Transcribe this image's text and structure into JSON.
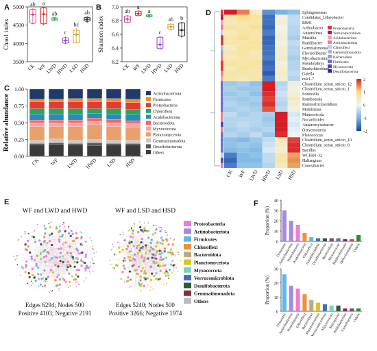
{
  "panel_labels": [
    "A",
    "B",
    "C",
    "D",
    "E",
    "F"
  ],
  "groups": [
    "CK",
    "WF",
    "LWD",
    "HWD",
    "LSD",
    "HSD"
  ],
  "colors": {
    "CK": "#d6408f",
    "WF": "#e02020",
    "LWD": "#3fae5a",
    "HWD": "#8a3fd0",
    "LSD": "#e39a2a",
    "HSD": "#222222"
  },
  "chart_data": [
    {
      "type": "box",
      "panel": "A",
      "ylabel": "Chao1 index",
      "ylim": [
        3500,
        5000
      ],
      "yticks": [
        3500,
        4000,
        4500,
        5000
      ],
      "categories": [
        "CK",
        "WF",
        "LWD",
        "HWD",
        "LSD",
        "HSD"
      ],
      "letters": [
        "ab",
        "a",
        "ab",
        "c",
        "bc",
        "ab"
      ],
      "boxes": [
        {
          "min": 4520,
          "q1": 4560,
          "median": 4790,
          "q3": 4920,
          "max": 4960
        },
        {
          "min": 4490,
          "q1": 4550,
          "median": 4800,
          "q3": 4960,
          "max": 4990
        },
        {
          "min": 4620,
          "q1": 4640,
          "median": 4665,
          "q3": 4690,
          "max": 4710
        },
        {
          "min": 3980,
          "q1": 4020,
          "median": 4080,
          "q3": 4140,
          "max": 4190
        },
        {
          "min": 4000,
          "q1": 4030,
          "median": 4240,
          "q3": 4350,
          "max": 4410
        },
        {
          "min": 4560,
          "q1": 4620,
          "median": 4660,
          "q3": 4700,
          "max": 4740
        }
      ]
    },
    {
      "type": "box",
      "panel": "B",
      "ylabel": "Shannon index",
      "ylim": [
        6.2,
        7.0
      ],
      "yticks": [
        6.2,
        6.4,
        6.6,
        6.8,
        7.0
      ],
      "categories": [
        "CK",
        "WF",
        "LWD",
        "HWD",
        "LSD",
        "HSD"
      ],
      "letters": [
        "ab",
        "a",
        "a",
        "c",
        "ab",
        "b"
      ],
      "boxes": [
        {
          "min": 6.76,
          "q1": 6.78,
          "median": 6.82,
          "q3": 6.86,
          "max": 6.88
        },
        {
          "min": 6.87,
          "q1": 6.88,
          "median": 6.9,
          "q3": 6.93,
          "max": 6.94
        },
        {
          "min": 6.85,
          "q1": 6.86,
          "median": 6.87,
          "q3": 6.88,
          "max": 6.88
        },
        {
          "min": 6.37,
          "q1": 6.4,
          "median": 6.45,
          "q3": 6.55,
          "max": 6.57
        },
        {
          "min": 6.65,
          "q1": 6.68,
          "median": 6.71,
          "q3": 6.74,
          "max": 6.76
        },
        {
          "min": 6.55,
          "q1": 6.58,
          "median": 6.66,
          "q3": 6.76,
          "max": 6.78
        }
      ]
    },
    {
      "type": "bar",
      "stacked": true,
      "panel": "C",
      "ylabel": "Relative abundance",
      "ylim": [
        0,
        1
      ],
      "yticks": [
        0.0,
        0.25,
        0.5,
        0.75,
        1.0
      ],
      "categories": [
        "CK",
        "WF",
        "LWD",
        "HWD",
        "LSD",
        "HSD"
      ],
      "legend": "right",
      "series": [
        {
          "name": "Others",
          "color": "#3a3a3a",
          "values": [
            0.17,
            0.18,
            0.17,
            0.16,
            0.17,
            0.17
          ]
        },
        {
          "name": "Desulfobacterota",
          "color": "#5a5a5a",
          "values": [
            0.02,
            0.02,
            0.02,
            0.04,
            0.02,
            0.02
          ]
        },
        {
          "name": "Gemmatimonadota",
          "color": "#c8c8c8",
          "values": [
            0.05,
            0.06,
            0.05,
            0.05,
            0.05,
            0.05
          ]
        },
        {
          "name": "Planctomycetota",
          "color": "#e9a06a",
          "values": [
            0.2,
            0.18,
            0.2,
            0.22,
            0.2,
            0.19
          ]
        },
        {
          "name": "Myxococcota",
          "color": "#f3a6a6",
          "values": [
            0.06,
            0.06,
            0.06,
            0.05,
            0.06,
            0.06
          ]
        },
        {
          "name": "Bacteroidota",
          "color": "#f06a6a",
          "values": [
            0.04,
            0.04,
            0.04,
            0.05,
            0.05,
            0.04
          ]
        },
        {
          "name": "Acidobacteriota",
          "color": "#2c8ab8",
          "values": [
            0.09,
            0.09,
            0.09,
            0.07,
            0.08,
            0.09
          ]
        },
        {
          "name": "Chloroflexi",
          "color": "#2ca55a",
          "values": [
            0.08,
            0.08,
            0.08,
            0.07,
            0.08,
            0.08
          ]
        },
        {
          "name": "Proteobacteria",
          "color": "#e53935",
          "values": [
            0.1,
            0.1,
            0.1,
            0.1,
            0.1,
            0.1
          ]
        },
        {
          "name": "Firmicutes",
          "color": "#f28c28",
          "values": [
            0.04,
            0.04,
            0.05,
            0.05,
            0.05,
            0.05
          ]
        },
        {
          "name": "Actinobacteriota",
          "color": "#1f3a6b",
          "values": [
            0.15,
            0.15,
            0.14,
            0.14,
            0.14,
            0.15
          ]
        }
      ],
      "legend_entries": [
        "Actinobacteriota",
        "Firmicutes",
        "Proteobacteria",
        "Chloroflexi",
        "Acidobacteriota",
        "Bacteroidota",
        "Myxococcota",
        "Planctomycetota",
        "Gemmatimonadota",
        "Desulfobacterota",
        "Others"
      ]
    },
    {
      "type": "heatmap",
      "panel": "D",
      "columns": [
        "CK",
        "WF",
        "LWD",
        "HWD",
        "LSD",
        "HSD"
      ],
      "rows": [
        "Sphingomonas",
        "Candidatus_Udaeobacter",
        "RB41",
        "Arthrobacter",
        "Anaerolinea",
        "Massilia",
        "Ramlibacter",
        "Gemmatimonas",
        "Flavisolibacter",
        "Mycobacterium",
        "Pseudolabrys",
        "Bradyrhizobium",
        "Gaiella",
        "mle1-7",
        "Clostridium_sensu_stricto_12",
        "Clostridium_sensu_stricto_1",
        "Fonticella",
        "Romboutsia",
        "Rummeliiclostridium",
        "Mobilitalea",
        "Marmoricola",
        "Nocardioides",
        "Anaeromyxobacter",
        "Ozryentotteria",
        "Planococcus",
        "Clostridium_sensu_stricto_10",
        "Clostridium_sensu_stricto_8",
        "Bacillus",
        "WCHB1-32",
        "Haliangium",
        "Conexibacter"
      ],
      "row_groups": [
        "Proteobacteria",
        "Verrucomicrobiota",
        "Acidobacteriota",
        "Actinobacteriota",
        "Chloroflexi",
        "Proteobacteria",
        "Proteobacteria",
        "Gemmatimonadota",
        "Bacteroidota",
        "Actinobacteriota",
        "Proteobacteria",
        "Proteobacteria",
        "Actinobacteriota",
        "Acidobacteriota",
        "Firmicutes",
        "Firmicutes",
        "Firmicutes",
        "Firmicutes",
        "Firmicutes",
        "Firmicutes",
        "Actinobacteriota",
        "Actinobacteriota",
        "Myxococcota",
        "Actinobacteriota",
        "Firmicutes",
        "Firmicutes",
        "Firmicutes",
        "Firmicutes",
        "Chloroflexi",
        "Myxococcota",
        "Actinobacteriota"
      ],
      "group_legend": [
        {
          "name": "Proteobacteria",
          "color": "#e53935"
        },
        {
          "name": "Verrucomicrobiota",
          "color": "#a31f5a"
        },
        {
          "name": "Acidobacteriota",
          "color": "#f0a0b8"
        },
        {
          "name": "Actinobacteriota",
          "color": "#f48080"
        },
        {
          "name": "Chloroflexi",
          "color": "#c9c9f0"
        },
        {
          "name": "Gemmatimonadota",
          "color": "#b4b4e0"
        },
        {
          "name": "Bacteroidota",
          "color": "#9a9ad8"
        },
        {
          "name": "Firmicutes",
          "color": "#6e6ec8"
        },
        {
          "name": "Myxococcota",
          "color": "#4a4ab8"
        },
        {
          "name": "Desulfobacterota",
          "color": "#2a2aa0"
        }
      ],
      "scale_ticks": [
        "2",
        "1",
        "0",
        "-1",
        "-2"
      ],
      "scale_range": [
        -2,
        2
      ],
      "values": [
        [
          2.2,
          1.5,
          0.4,
          -1.3,
          -1.0,
          -0.8
        ],
        [
          0.6,
          0.9,
          0.7,
          -1.6,
          0.2,
          -0.4
        ],
        [
          0.5,
          0.6,
          0.6,
          -1.6,
          0.3,
          -0.4
        ],
        [
          0.7,
          0.6,
          0.8,
          -1.7,
          0.1,
          -0.5
        ],
        [
          0.5,
          0.7,
          0.6,
          -1.5,
          0.2,
          -0.5
        ],
        [
          0.6,
          0.8,
          0.6,
          -1.7,
          0.3,
          -0.6
        ],
        [
          0.6,
          0.6,
          0.7,
          -1.7,
          0.2,
          -0.4
        ],
        [
          0.4,
          0.7,
          0.7,
          -1.6,
          0.3,
          -0.5
        ],
        [
          0.6,
          0.7,
          0.5,
          -1.6,
          0.3,
          -0.5
        ],
        [
          0.5,
          0.6,
          0.6,
          -1.5,
          0.4,
          -0.6
        ],
        [
          0.7,
          0.6,
          0.7,
          -1.7,
          0.2,
          -0.5
        ],
        [
          0.5,
          0.7,
          0.6,
          -1.6,
          0.3,
          -0.5
        ],
        [
          0.7,
          0.6,
          0.6,
          -1.8,
          0.4,
          -0.4
        ],
        [
          0.6,
          0.5,
          0.6,
          -1.5,
          0.3,
          -0.5
        ],
        [
          -0.7,
          -0.6,
          -0.8,
          2.0,
          -0.5,
          0.3
        ],
        [
          -0.6,
          -0.7,
          -0.7,
          2.0,
          -0.4,
          0.2
        ],
        [
          -0.7,
          -0.6,
          -0.8,
          1.9,
          -0.3,
          0.3
        ],
        [
          -0.6,
          -0.7,
          -0.6,
          1.8,
          -0.4,
          0.4
        ],
        [
          -0.5,
          -0.6,
          -0.7,
          1.9,
          -0.5,
          0.3
        ],
        [
          -0.6,
          -0.5,
          -0.6,
          1.7,
          -0.4,
          0.2
        ],
        [
          -0.4,
          -0.6,
          -0.5,
          -0.6,
          2.2,
          -0.2
        ],
        [
          -0.5,
          -0.5,
          -0.5,
          -0.7,
          2.1,
          -0.1
        ],
        [
          -0.5,
          -0.4,
          -0.5,
          -0.6,
          2.0,
          -0.2
        ],
        [
          -0.6,
          -0.5,
          -0.6,
          -0.5,
          2.1,
          -0.1
        ],
        [
          -0.5,
          -0.6,
          -0.4,
          -0.7,
          1.9,
          0.1
        ],
        [
          -0.8,
          -0.9,
          -0.7,
          -0.4,
          0.5,
          1.8
        ],
        [
          -0.8,
          -0.7,
          -0.8,
          -0.3,
          0.4,
          1.9
        ],
        [
          -0.9,
          -0.8,
          -0.9,
          -0.2,
          0.3,
          1.9
        ],
        [
          -1.5,
          -0.9,
          -0.8,
          -0.4,
          0.6,
          1.3
        ],
        [
          -1.7,
          -0.9,
          -0.9,
          -0.4,
          0.6,
          1.4
        ],
        [
          -1.5,
          -0.8,
          -0.8,
          -0.5,
          0.5,
          1.3
        ]
      ]
    },
    {
      "type": "network",
      "panel": "E",
      "networks": [
        {
          "title": "WF and LWD and HWD",
          "edges": "Edges 6294; Nodes 500",
          "sign": "Positive 4103; Negative 2191"
        },
        {
          "title": "WF and LSD and HSD",
          "edges": "Edges 5240; Nodes 500",
          "sign": "Positive 3266; Negative 1974"
        }
      ],
      "legend": [
        {
          "name": "Proteobacteria",
          "color": "#ef7bd6"
        },
        {
          "name": "Actinobacteriota",
          "color": "#a78ae0"
        },
        {
          "name": "Firmicutes",
          "color": "#5eb8e8"
        },
        {
          "name": "Chloroflexi",
          "color": "#f0903a"
        },
        {
          "name": "Bacteroidota",
          "color": "#c7a77a"
        },
        {
          "name": "Planctomycetota",
          "color": "#d6c626"
        },
        {
          "name": "Myxococcota",
          "color": "#7ed0c4"
        },
        {
          "name": "Verrucomicrobiota",
          "color": "#4a6fb8"
        },
        {
          "name": "Desulfobacterota",
          "color": "#2e5a3a"
        },
        {
          "name": "Gemmatimonadota",
          "color": "#8a2a3a"
        },
        {
          "name": "Others",
          "color": "#bdbdbd"
        }
      ]
    },
    {
      "type": "bar",
      "panel": "F-top",
      "ylabel": "Proportion (%)",
      "ylim": [
        0,
        40
      ],
      "yticks": [
        0,
        10,
        20,
        30,
        40
      ],
      "categories": [
        "Firmicutes",
        "Actinobacteriota",
        "Proteobacteria",
        "Acidobacteriota",
        "Chloroflexi",
        "Armatimonadota",
        "Desulfobacterota",
        "Bacteroidota",
        "Myxococcota",
        "Bdellovibrionota",
        "Deferrisomatota",
        "Others"
      ],
      "values": [
        30,
        20,
        16,
        8,
        4,
        3,
        3,
        3,
        3,
        2,
        2,
        6
      ],
      "colors": [
        "#a78ae0",
        "#a78ae0",
        "#ef7bd6",
        "#f0903a",
        "#5eb8e8",
        "#4a6fb8",
        "#2e5a3a",
        "#6e4b8a",
        "#5a6fb0",
        "#8a2a3a",
        "#b64a4a",
        "#2e8a2e"
      ]
    },
    {
      "type": "bar",
      "panel": "F-bottom",
      "ylabel": "Proportion (%)",
      "ylim": [
        0,
        30
      ],
      "yticks": [
        0,
        10,
        20,
        30
      ],
      "categories": [
        "Firmicutes",
        "Actinobacteriota",
        "Proteobacteria",
        "Chloroflexi",
        "Bacteroidota",
        "Planctomycetota",
        "Verrucomicrobiota",
        "Myxococcota",
        "Nitrospirota",
        "Acidobacteriota",
        "Cyanobacteria",
        "Others"
      ],
      "values": [
        26,
        18,
        16,
        12,
        8,
        6,
        5,
        4,
        4,
        2,
        2,
        2
      ],
      "colors": [
        "#5eb8e8",
        "#a78ae0",
        "#ef7bd6",
        "#f0903a",
        "#c7a77a",
        "#d6c626",
        "#4a6fb8",
        "#7ed0c4",
        "#2e5a3a",
        "#8a2a3a",
        "#6e4b8a",
        "#2e8a2e"
      ]
    }
  ]
}
